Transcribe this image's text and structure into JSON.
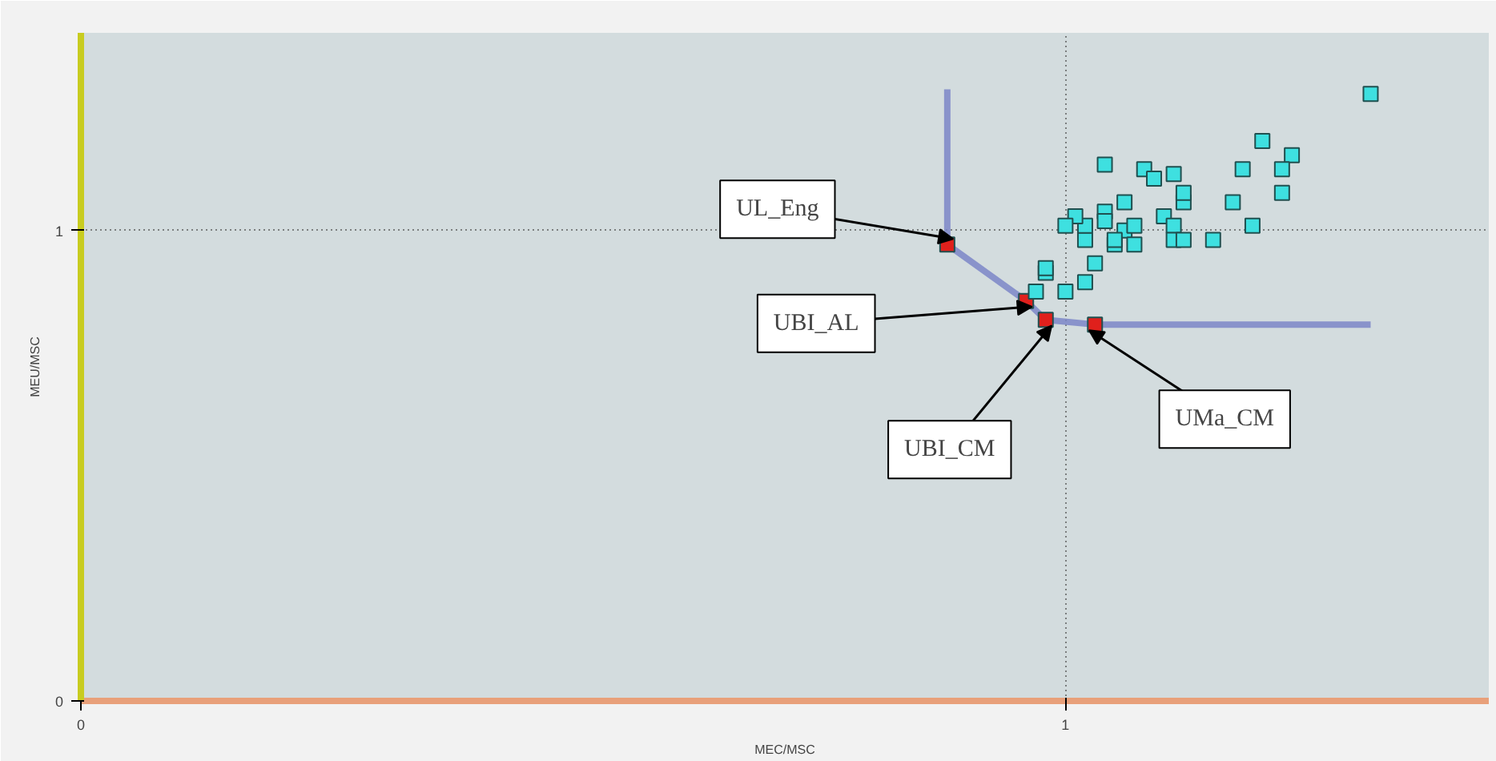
{
  "chart_data": {
    "type": "scatter",
    "xlabel": "MEC/MSC",
    "ylabel": "MEU/MSC",
    "xlim": [
      0,
      1.43
    ],
    "ylim": [
      0,
      1.42
    ],
    "xticks": [
      0,
      1
    ],
    "yticks": [
      0,
      1
    ],
    "grid": true,
    "marker": "square",
    "series": [
      {
        "type": "line",
        "marker": "none",
        "color": "#7b86c8",
        "x": [
          0.88,
          0.88,
          0.96,
          0.98,
          1.03,
          1.31
        ],
        "values": [
          1.3,
          0.97,
          0.85,
          0.81,
          0.8,
          0.8
        ]
      },
      {
        "color": "#e0201c",
        "x": [
          0.88,
          0.96,
          0.98,
          1.03
        ],
        "values": [
          0.97,
          0.85,
          0.81,
          0.8
        ]
      },
      {
        "color": "#3ee0e0",
        "x": [
          1.31,
          1.2,
          1.23,
          1.22,
          1.18,
          1.22,
          1.17,
          1.19,
          1.15,
          1.04,
          1.08,
          1.09,
          1.11,
          1.06,
          1.12,
          1.12,
          1.1,
          1.11,
          1.06,
          1.07,
          1.07,
          1.11,
          1.12,
          1.05,
          1.05,
          1.02,
          1.02,
          1.04,
          1.04,
          1.01,
          1.0,
          1.03,
          1.02,
          1.0,
          0.98,
          0.98,
          0.97
        ],
        "values": [
          1.29,
          1.19,
          1.16,
          1.13,
          1.13,
          1.08,
          1.06,
          1.01,
          0.98,
          1.14,
          1.13,
          1.11,
          1.12,
          1.06,
          1.06,
          1.08,
          1.03,
          1.01,
          1.0,
          1.01,
          0.97,
          0.98,
          0.98,
          0.97,
          0.98,
          0.98,
          1.01,
          1.04,
          1.02,
          1.03,
          1.01,
          0.93,
          0.89,
          0.87,
          0.91,
          0.92,
          0.87
        ]
      }
    ],
    "annotations": [
      {
        "text": "UL_Eng",
        "x": 0.88,
        "y": 0.97
      },
      {
        "text": "UBI_AL",
        "x": 0.96,
        "y": 0.85
      },
      {
        "text": "UBI_CM",
        "x": 0.98,
        "y": 0.81
      },
      {
        "text": "UMa_CM",
        "x": 1.03,
        "y": 0.8
      }
    ]
  }
}
